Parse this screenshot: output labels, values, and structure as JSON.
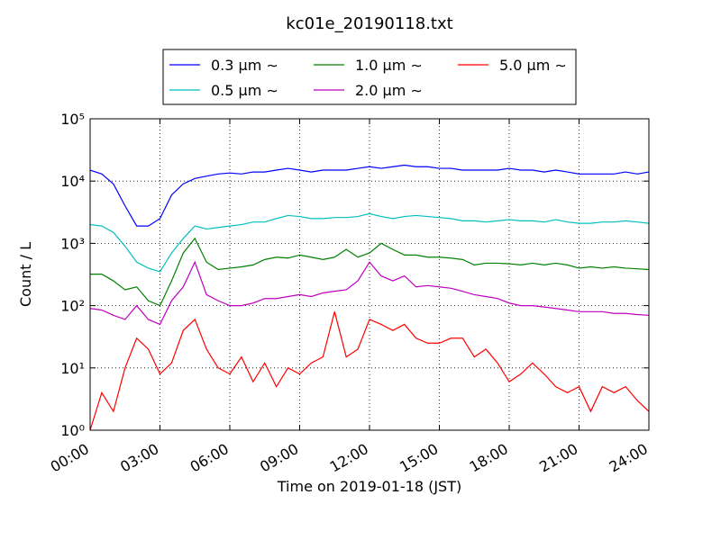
{
  "chart_data": {
    "type": "line",
    "title": "kc01e_20190118.txt",
    "x_label": "Time on 2019-01-18 (JST)",
    "y_label": "Count / L",
    "log_scale_y": true,
    "grid": true,
    "x": [
      0,
      0.5,
      1,
      1.5,
      2,
      2.5,
      3,
      3.5,
      4,
      4.5,
      5,
      5.5,
      6,
      6.5,
      7,
      7.5,
      8,
      8.5,
      9,
      9.5,
      10,
      10.5,
      11,
      11.5,
      12,
      12.5,
      13,
      13.5,
      14,
      14.5,
      15,
      15.5,
      16,
      16.5,
      17,
      17.5,
      18,
      18.5,
      19,
      19.5,
      20,
      20.5,
      21,
      21.5,
      22,
      22.5,
      23,
      23.5,
      24
    ],
    "xlim": [
      0,
      24
    ],
    "xticks": [
      {
        "value": 0,
        "label": "00:00"
      },
      {
        "value": 3,
        "label": "03:00"
      },
      {
        "value": 6,
        "label": "06:00"
      },
      {
        "value": 9,
        "label": "09:00"
      },
      {
        "value": 12,
        "label": "12:00"
      },
      {
        "value": 15,
        "label": "15:00"
      },
      {
        "value": 18,
        "label": "18:00"
      },
      {
        "value": 21,
        "label": "21:00"
      },
      {
        "value": 24,
        "label": "24:00"
      }
    ],
    "ylim": [
      1,
      100000
    ],
    "yticks": [
      {
        "value": 1,
        "label": "10⁰"
      },
      {
        "value": 10,
        "label": "10¹"
      },
      {
        "value": 100,
        "label": "10²"
      },
      {
        "value": 1000,
        "label": "10³"
      },
      {
        "value": 10000,
        "label": "10⁴"
      },
      {
        "value": 100000,
        "label": "10⁵"
      }
    ],
    "series": [
      {
        "name": "0.3 μm ∼",
        "color": "#0000ff",
        "values": [
          15000,
          13000,
          9000,
          4000,
          1900,
          1900,
          2500,
          6000,
          9000,
          11000,
          12000,
          13000,
          13500,
          13000,
          14000,
          14000,
          15000,
          16000,
          15000,
          14000,
          15000,
          15000,
          15000,
          16000,
          17000,
          16000,
          17000,
          18000,
          17000,
          17000,
          16000,
          16000,
          15000,
          15000,
          15000,
          15000,
          16000,
          15000,
          15000,
          14000,
          15000,
          14000,
          13000,
          13000,
          13000,
          13000,
          14000,
          13000,
          14000
        ]
      },
      {
        "name": "0.5 μm ∼",
        "color": "#00bfbf",
        "values": [
          2000,
          1900,
          1500,
          900,
          500,
          400,
          350,
          700,
          1200,
          1900,
          1700,
          1800,
          1900,
          2000,
          2200,
          2200,
          2500,
          2800,
          2700,
          2500,
          2500,
          2600,
          2600,
          2700,
          3000,
          2700,
          2500,
          2700,
          2800,
          2700,
          2600,
          2500,
          2300,
          2300,
          2200,
          2300,
          2400,
          2300,
          2300,
          2200,
          2400,
          2200,
          2100,
          2100,
          2200,
          2200,
          2300,
          2200,
          2100
        ]
      },
      {
        "name": "1.0 μm ∼",
        "color": "#008000",
        "values": [
          320,
          320,
          250,
          180,
          200,
          120,
          100,
          250,
          700,
          1200,
          500,
          380,
          400,
          420,
          450,
          550,
          600,
          580,
          650,
          600,
          550,
          600,
          800,
          600,
          700,
          1000,
          800,
          650,
          650,
          600,
          600,
          580,
          550,
          450,
          480,
          480,
          470,
          450,
          480,
          450,
          480,
          450,
          400,
          420,
          400,
          420,
          400,
          390,
          380
        ]
      },
      {
        "name": "2.0 μm ∼",
        "color": "#bf00bf",
        "values": [
          90,
          85,
          70,
          60,
          100,
          60,
          50,
          120,
          200,
          500,
          150,
          120,
          100,
          100,
          110,
          130,
          130,
          140,
          150,
          140,
          160,
          170,
          180,
          250,
          500,
          300,
          250,
          300,
          200,
          210,
          200,
          190,
          170,
          150,
          140,
          130,
          110,
          100,
          100,
          95,
          90,
          85,
          80,
          80,
          80,
          75,
          75,
          72,
          70
        ]
      },
      {
        "name": "5.0 μm ∼",
        "color": "#ff0000",
        "values": [
          1,
          4,
          2,
          10,
          30,
          20,
          8,
          12,
          40,
          60,
          20,
          10,
          8,
          15,
          6,
          12,
          5,
          10,
          8,
          12,
          15,
          80,
          15,
          20,
          60,
          50,
          40,
          50,
          30,
          25,
          25,
          30,
          30,
          15,
          20,
          12,
          6,
          8,
          12,
          8,
          5,
          4,
          5,
          2,
          5,
          4,
          5,
          3,
          2
        ]
      }
    ]
  }
}
